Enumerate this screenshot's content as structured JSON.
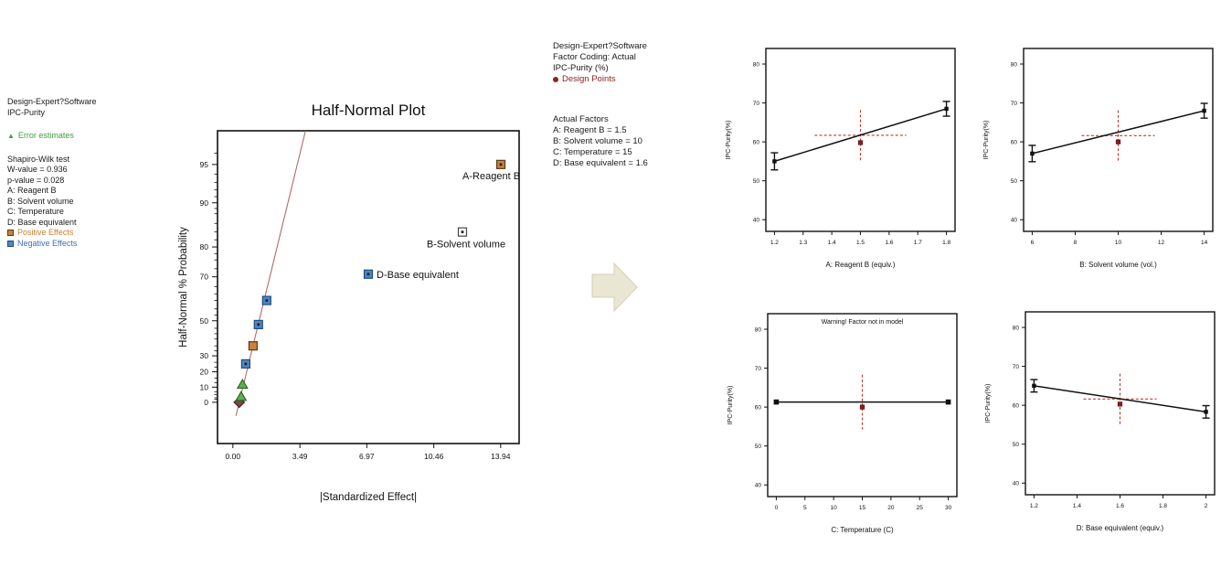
{
  "left_panel": {
    "title": "Design-Expert?Software",
    "subtitle": "IPC-Purity",
    "error_estimates": "Error estimates",
    "lines": [
      "Shapiro-Wilk test",
      "W-value = 0.936",
      "p-value = 0.028",
      "A: Reagent B",
      "B: Solvent volume",
      "C: Temperature",
      "D: Base equivalent"
    ],
    "positive_effects": "Positive Effects",
    "negative_effects": "Negative Effects"
  },
  "middle_panel": {
    "title": "Design-Expert?Software",
    "factor_coding": "Factor Coding: Actual",
    "response": "IPC-Purity (%)",
    "design_points": "Design Points",
    "actual_factors_title": "Actual Factors",
    "factors": [
      "A: Reagent B = 1.5",
      "B: Solvent volume = 10",
      "C: Temperature = 15",
      "D: Base equivalent = 1.6"
    ]
  },
  "colors": {
    "positive": "#c8823a",
    "positive_border": "#5a3a14",
    "negative": "#4f86c6",
    "negative_border": "#1f4e79",
    "error_green": "#5db052",
    "error_green_border": "#2e6b2a",
    "error_dark": "#7a4545",
    "error_dark_border": "#3f2020",
    "open_fill": "#ffffff",
    "open_border": "#444444",
    "fit_line": "#b26a6a",
    "design_point": "#8b2222",
    "crosshair": "#c0392b",
    "warning": "#cc2222",
    "arrow_fill": "#e9e6d3",
    "arrow_border": "#d4cfb4",
    "green_text": "#3c9e3c",
    "orange_text": "#c87f2e",
    "blue_text": "#3f6fb5",
    "dark_red_text": "#8b2222"
  },
  "chart_data": [
    {
      "type": "scatter",
      "title": "Half-Normal Plot",
      "xlabel": "|Standardized Effect|",
      "ylabel": "Half-Normal % Probability",
      "xlim": [
        -0.8,
        14.9
      ],
      "xticks": [
        0.0,
        3.49,
        6.97,
        10.46,
        13.94
      ],
      "xtick_labels": [
        "0.00",
        "3.49",
        "6.97",
        "10.46",
        "13.94"
      ],
      "prob_ticks": [
        0,
        10,
        20,
        30,
        50,
        70,
        80,
        90,
        95
      ],
      "fit_line": {
        "x1": 0.33,
        "x2": 3.78
      },
      "points": [
        {
          "effect": 0.33,
          "prob": 0,
          "shape": "diamond",
          "kind": "error-dark"
        },
        {
          "effect": 0.43,
          "prob": 4,
          "shape": "triangle",
          "kind": "error"
        },
        {
          "effect": 0.5,
          "prob": 12,
          "shape": "triangle",
          "kind": "error"
        },
        {
          "effect": 0.67,
          "prob": 25,
          "shape": "square",
          "kind": "negative"
        },
        {
          "effect": 1.05,
          "prob": 36,
          "shape": "square",
          "kind": "positive"
        },
        {
          "effect": 1.33,
          "prob": 48,
          "shape": "square",
          "kind": "negative"
        },
        {
          "effect": 1.76,
          "prob": 60,
          "shape": "square",
          "kind": "negative"
        },
        {
          "effect": 7.05,
          "prob": 71,
          "shape": "square",
          "kind": "negative",
          "label": "D-Base equivalent",
          "label_side": "right"
        },
        {
          "effect": 11.95,
          "prob": 84,
          "shape": "square",
          "kind": "open",
          "label": "B-Solvent volume",
          "label_side": "below"
        },
        {
          "effect": 13.95,
          "prob": 95,
          "shape": "square-dot",
          "kind": "positive",
          "label": "A-Reagent B",
          "label_side": "below-left"
        }
      ]
    },
    {
      "type": "line",
      "xlabel": "A: Reagent B (equiv.)",
      "ylabel": "IPC-Purity(%)",
      "xlim": [
        1.17,
        1.83
      ],
      "xticks": [
        1.2,
        1.3,
        1.4,
        1.5,
        1.6,
        1.7,
        1.8
      ],
      "xtick_labels": [
        "1.2",
        "1.3",
        "1.4",
        "1.5",
        "1.6",
        "1.7",
        "1.8"
      ],
      "yticks": [
        40,
        50,
        60,
        70,
        80
      ],
      "ylim": [
        37,
        84
      ],
      "line": [
        [
          1.2,
          55.0
        ],
        [
          1.8,
          68.5
        ]
      ],
      "errorbars": [
        {
          "x": 1.2,
          "y": 55.0,
          "e": 2.2
        },
        {
          "x": 1.8,
          "y": 68.5,
          "e": 1.9
        }
      ],
      "design_point": {
        "x": 1.5,
        "y": 59.8
      },
      "crosshair": {
        "x": 1.5,
        "y": 61.7,
        "dx": 0.16,
        "dy": 6.5,
        "horizontal": true
      }
    },
    {
      "type": "line",
      "xlabel": "B: Solvent volume (vol.)",
      "ylabel": "IPC-Purity(%)",
      "xlim": [
        5.6,
        14.4
      ],
      "xticks": [
        6,
        8,
        10,
        12,
        14
      ],
      "xtick_labels": [
        "6",
        "8",
        "10",
        "12",
        "14"
      ],
      "yticks": [
        40,
        50,
        60,
        70,
        80
      ],
      "ylim": [
        37,
        84
      ],
      "line": [
        [
          6,
          57.0
        ],
        [
          14,
          68.0
        ]
      ],
      "errorbars": [
        {
          "x": 6,
          "y": 57.0,
          "e": 2.1
        },
        {
          "x": 14,
          "y": 68.0,
          "e": 1.9
        }
      ],
      "design_point": {
        "x": 10,
        "y": 60.0
      },
      "crosshair": {
        "x": 10,
        "y": 61.6,
        "dx": 1.7,
        "dy": 6.5,
        "horizontal": true
      }
    },
    {
      "type": "line",
      "xlabel": "C: Temperature (C)",
      "ylabel": "IPC-Purity(%)",
      "warning": "Warning! Factor not in model",
      "xlim": [
        -1.5,
        31.5
      ],
      "xticks": [
        0,
        5,
        10,
        15,
        20,
        25,
        30
      ],
      "xtick_labels": [
        "0",
        "5",
        "10",
        "15",
        "20",
        "25",
        "30"
      ],
      "yticks": [
        40,
        50,
        60,
        70,
        80
      ],
      "ylim": [
        37,
        84
      ],
      "line": [
        [
          0,
          61.3
        ],
        [
          30,
          61.3
        ]
      ],
      "end_squares": true,
      "design_point": {
        "x": 15,
        "y": 60.0
      },
      "crosshair": {
        "x": 15,
        "y": 61.3,
        "dx": 0,
        "dy": 7,
        "horizontal": false
      }
    },
    {
      "type": "line",
      "xlabel": "D: Base equivalent (equiv.)",
      "ylabel": "IPC-Purity(%)",
      "xlim": [
        1.16,
        2.04
      ],
      "xticks": [
        1.2,
        1.4,
        1.6,
        1.8,
        2
      ],
      "xtick_labels": [
        "1.2",
        "1.4",
        "1.6",
        "1.8",
        "2"
      ],
      "yticks": [
        40,
        50,
        60,
        70,
        80
      ],
      "ylim": [
        37,
        84
      ],
      "line": [
        [
          1.2,
          65.0
        ],
        [
          2,
          58.3
        ]
      ],
      "errorbars": [
        {
          "x": 1.2,
          "y": 65.0,
          "e": 1.6
        },
        {
          "x": 2,
          "y": 58.3,
          "e": 1.6
        }
      ],
      "design_point": {
        "x": 1.6,
        "y": 60.3
      },
      "crosshair": {
        "x": 1.6,
        "y": 61.6,
        "dx": 0.17,
        "dy": 6.5,
        "horizontal": true
      }
    }
  ]
}
